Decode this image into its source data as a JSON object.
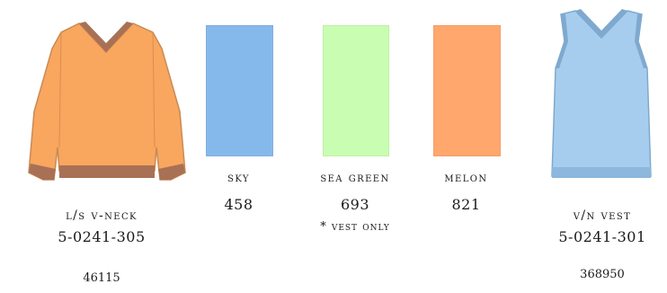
{
  "colors": {
    "sky": "#86b9eb",
    "sea_green": "#c9fdb1",
    "melon": "#ffa76d",
    "sweater_body": "#f9a65f",
    "sweater_trim": "#a87155",
    "vest_body": "#a7cdee",
    "vest_trim": "#7fa9cf"
  },
  "left_product": {
    "name": "l/s v-neck",
    "style_code": "5-0241-305",
    "item_number": "46115"
  },
  "swatches": [
    {
      "name": "sky",
      "code": "458",
      "color": "#86b9eb"
    },
    {
      "name": "sea green",
      "code": "693",
      "note": "* vest only",
      "color": "#c9fdb1"
    },
    {
      "name": "melon",
      "code": "821",
      "color": "#ffa76d"
    }
  ],
  "right_product": {
    "name": "v/n vest",
    "style_code": "5-0241-301",
    "item_number": "368950"
  },
  "icons": {
    "left": "long-sleeve-vneck-sweater-icon",
    "right": "vneck-vest-icon"
  }
}
